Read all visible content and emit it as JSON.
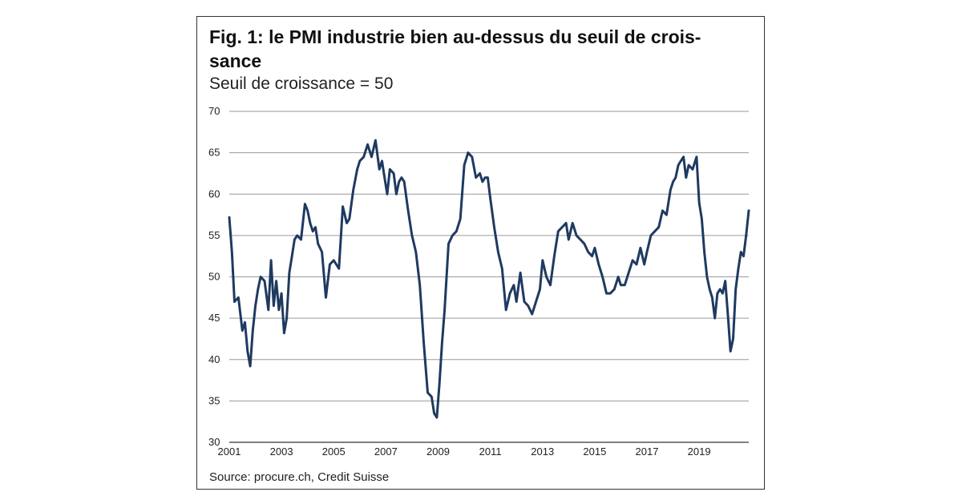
{
  "figure": {
    "title_line1": "Fig. 1: le PMI industrie bien au-dessus du seuil de crois-",
    "title_line2": "sance",
    "subtitle": "Seuil de croissance = 50",
    "source": "Source: procure.ch, Credit Suisse"
  },
  "chart_data": {
    "type": "line",
    "title": "Fig. 1: le PMI industrie bien au-dessus du seuil de croissance",
    "subtitle": "Seuil de croissance = 50",
    "xlabel": "",
    "ylabel": "",
    "xlim": [
      2001,
      2020.9
    ],
    "ylim": [
      30,
      70
    ],
    "yticks": [
      30,
      35,
      40,
      45,
      50,
      55,
      60,
      65,
      70
    ],
    "xticks": [
      2001,
      2003,
      2005,
      2007,
      2009,
      2011,
      2013,
      2015,
      2017,
      2019
    ],
    "grid": "horizontal",
    "legend": "none",
    "line_color": "#1f3a60",
    "series": [
      {
        "name": "",
        "x": [
          2001.0,
          2001.1,
          2001.2,
          2001.35,
          2001.5,
          2001.6,
          2001.7,
          2001.8,
          2001.9,
          2002.0,
          2002.1,
          2002.2,
          2002.35,
          2002.5,
          2002.6,
          2002.7,
          2002.8,
          2002.9,
          2003.0,
          2003.1,
          2003.2,
          2003.3,
          2003.4,
          2003.5,
          2003.6,
          2003.75,
          2003.9,
          2004.0,
          2004.1,
          2004.2,
          2004.3,
          2004.4,
          2004.55,
          2004.7,
          2004.85,
          2005.0,
          2005.1,
          2005.2,
          2005.35,
          2005.5,
          2005.6,
          2005.75,
          2005.9,
          2006.0,
          2006.15,
          2006.3,
          2006.45,
          2006.6,
          2006.75,
          2006.85,
          2006.95,
          2007.05,
          2007.15,
          2007.3,
          2007.4,
          2007.5,
          2007.6,
          2007.7,
          2007.85,
          2008.0,
          2008.15,
          2008.3,
          2008.45,
          2008.6,
          2008.75,
          2008.85,
          2008.95,
          2009.05,
          2009.15,
          2009.25,
          2009.4,
          2009.55,
          2009.7,
          2009.85,
          2010.0,
          2010.15,
          2010.3,
          2010.45,
          2010.6,
          2010.7,
          2010.8,
          2010.9,
          2011.0,
          2011.15,
          2011.3,
          2011.45,
          2011.6,
          2011.75,
          2011.9,
          2012.0,
          2012.15,
          2012.3,
          2012.45,
          2012.6,
          2012.75,
          2012.9,
          2013.0,
          2013.15,
          2013.3,
          2013.45,
          2013.6,
          2013.75,
          2013.9,
          2014.0,
          2014.15,
          2014.3,
          2014.45,
          2014.6,
          2014.75,
          2014.9,
          2015.0,
          2015.15,
          2015.3,
          2015.45,
          2015.6,
          2015.75,
          2015.9,
          2016.0,
          2016.15,
          2016.3,
          2016.45,
          2016.6,
          2016.75,
          2016.9,
          2017.0,
          2017.15,
          2017.3,
          2017.45,
          2017.6,
          2017.75,
          2017.9,
          2018.0,
          2018.1,
          2018.2,
          2018.3,
          2018.4,
          2018.5,
          2018.6,
          2018.75,
          2018.9,
          2019.0,
          2019.1,
          2019.2,
          2019.3,
          2019.4,
          2019.5,
          2019.6,
          2019.7,
          2019.8,
          2019.9,
          2020.0,
          2020.1,
          2020.2,
          2020.3,
          2020.4,
          2020.5,
          2020.6,
          2020.7,
          2020.8,
          2020.9
        ],
        "values": [
          57.2,
          53.0,
          47.0,
          47.5,
          43.5,
          44.5,
          41.0,
          39.2,
          43.5,
          46.5,
          48.5,
          50.0,
          49.5,
          46.0,
          52.0,
          46.5,
          49.5,
          46.0,
          48.0,
          43.2,
          45.0,
          50.5,
          52.5,
          54.5,
          55.0,
          54.5,
          58.8,
          58.0,
          56.5,
          55.5,
          56.0,
          54.0,
          53.0,
          47.5,
          51.5,
          52.0,
          51.5,
          51.0,
          58.5,
          56.5,
          57.0,
          60.5,
          63.0,
          64.0,
          64.5,
          66.0,
          64.5,
          66.5,
          63.0,
          64.0,
          62.0,
          60.0,
          63.0,
          62.5,
          60.0,
          61.5,
          62.0,
          61.5,
          58.0,
          55.0,
          53.0,
          49.0,
          42.0,
          36.0,
          35.5,
          33.5,
          33.0,
          37.0,
          42.0,
          46.0,
          54.0,
          55.0,
          55.5,
          57.0,
          63.5,
          65.0,
          64.5,
          62.0,
          62.5,
          61.5,
          62.0,
          62.0,
          59.5,
          56.0,
          53.0,
          51.0,
          46.0,
          48.0,
          49.0,
          47.0,
          50.5,
          47.0,
          46.5,
          45.5,
          47.0,
          48.5,
          52.0,
          50.0,
          49.0,
          52.5,
          55.5,
          56.0,
          56.5,
          54.5,
          56.5,
          55.0,
          54.5,
          54.0,
          53.0,
          52.5,
          53.5,
          51.5,
          50.0,
          48.0,
          48.0,
          48.5,
          50.0,
          49.0,
          49.0,
          50.5,
          52.0,
          51.5,
          53.5,
          51.5,
          53.0,
          55.0,
          55.5,
          56.0,
          58.0,
          57.5,
          60.5,
          61.5,
          62.0,
          63.5,
          64.0,
          64.5,
          62.0,
          63.5,
          63.0,
          64.5,
          59.0,
          57.0,
          53.0,
          50.0,
          48.5,
          47.5,
          45.0,
          48.0,
          48.5,
          48.0,
          49.5,
          45.5,
          41.0,
          42.5,
          48.5,
          51.0,
          53.0,
          52.5,
          55.0,
          58.0
        ]
      }
    ]
  }
}
